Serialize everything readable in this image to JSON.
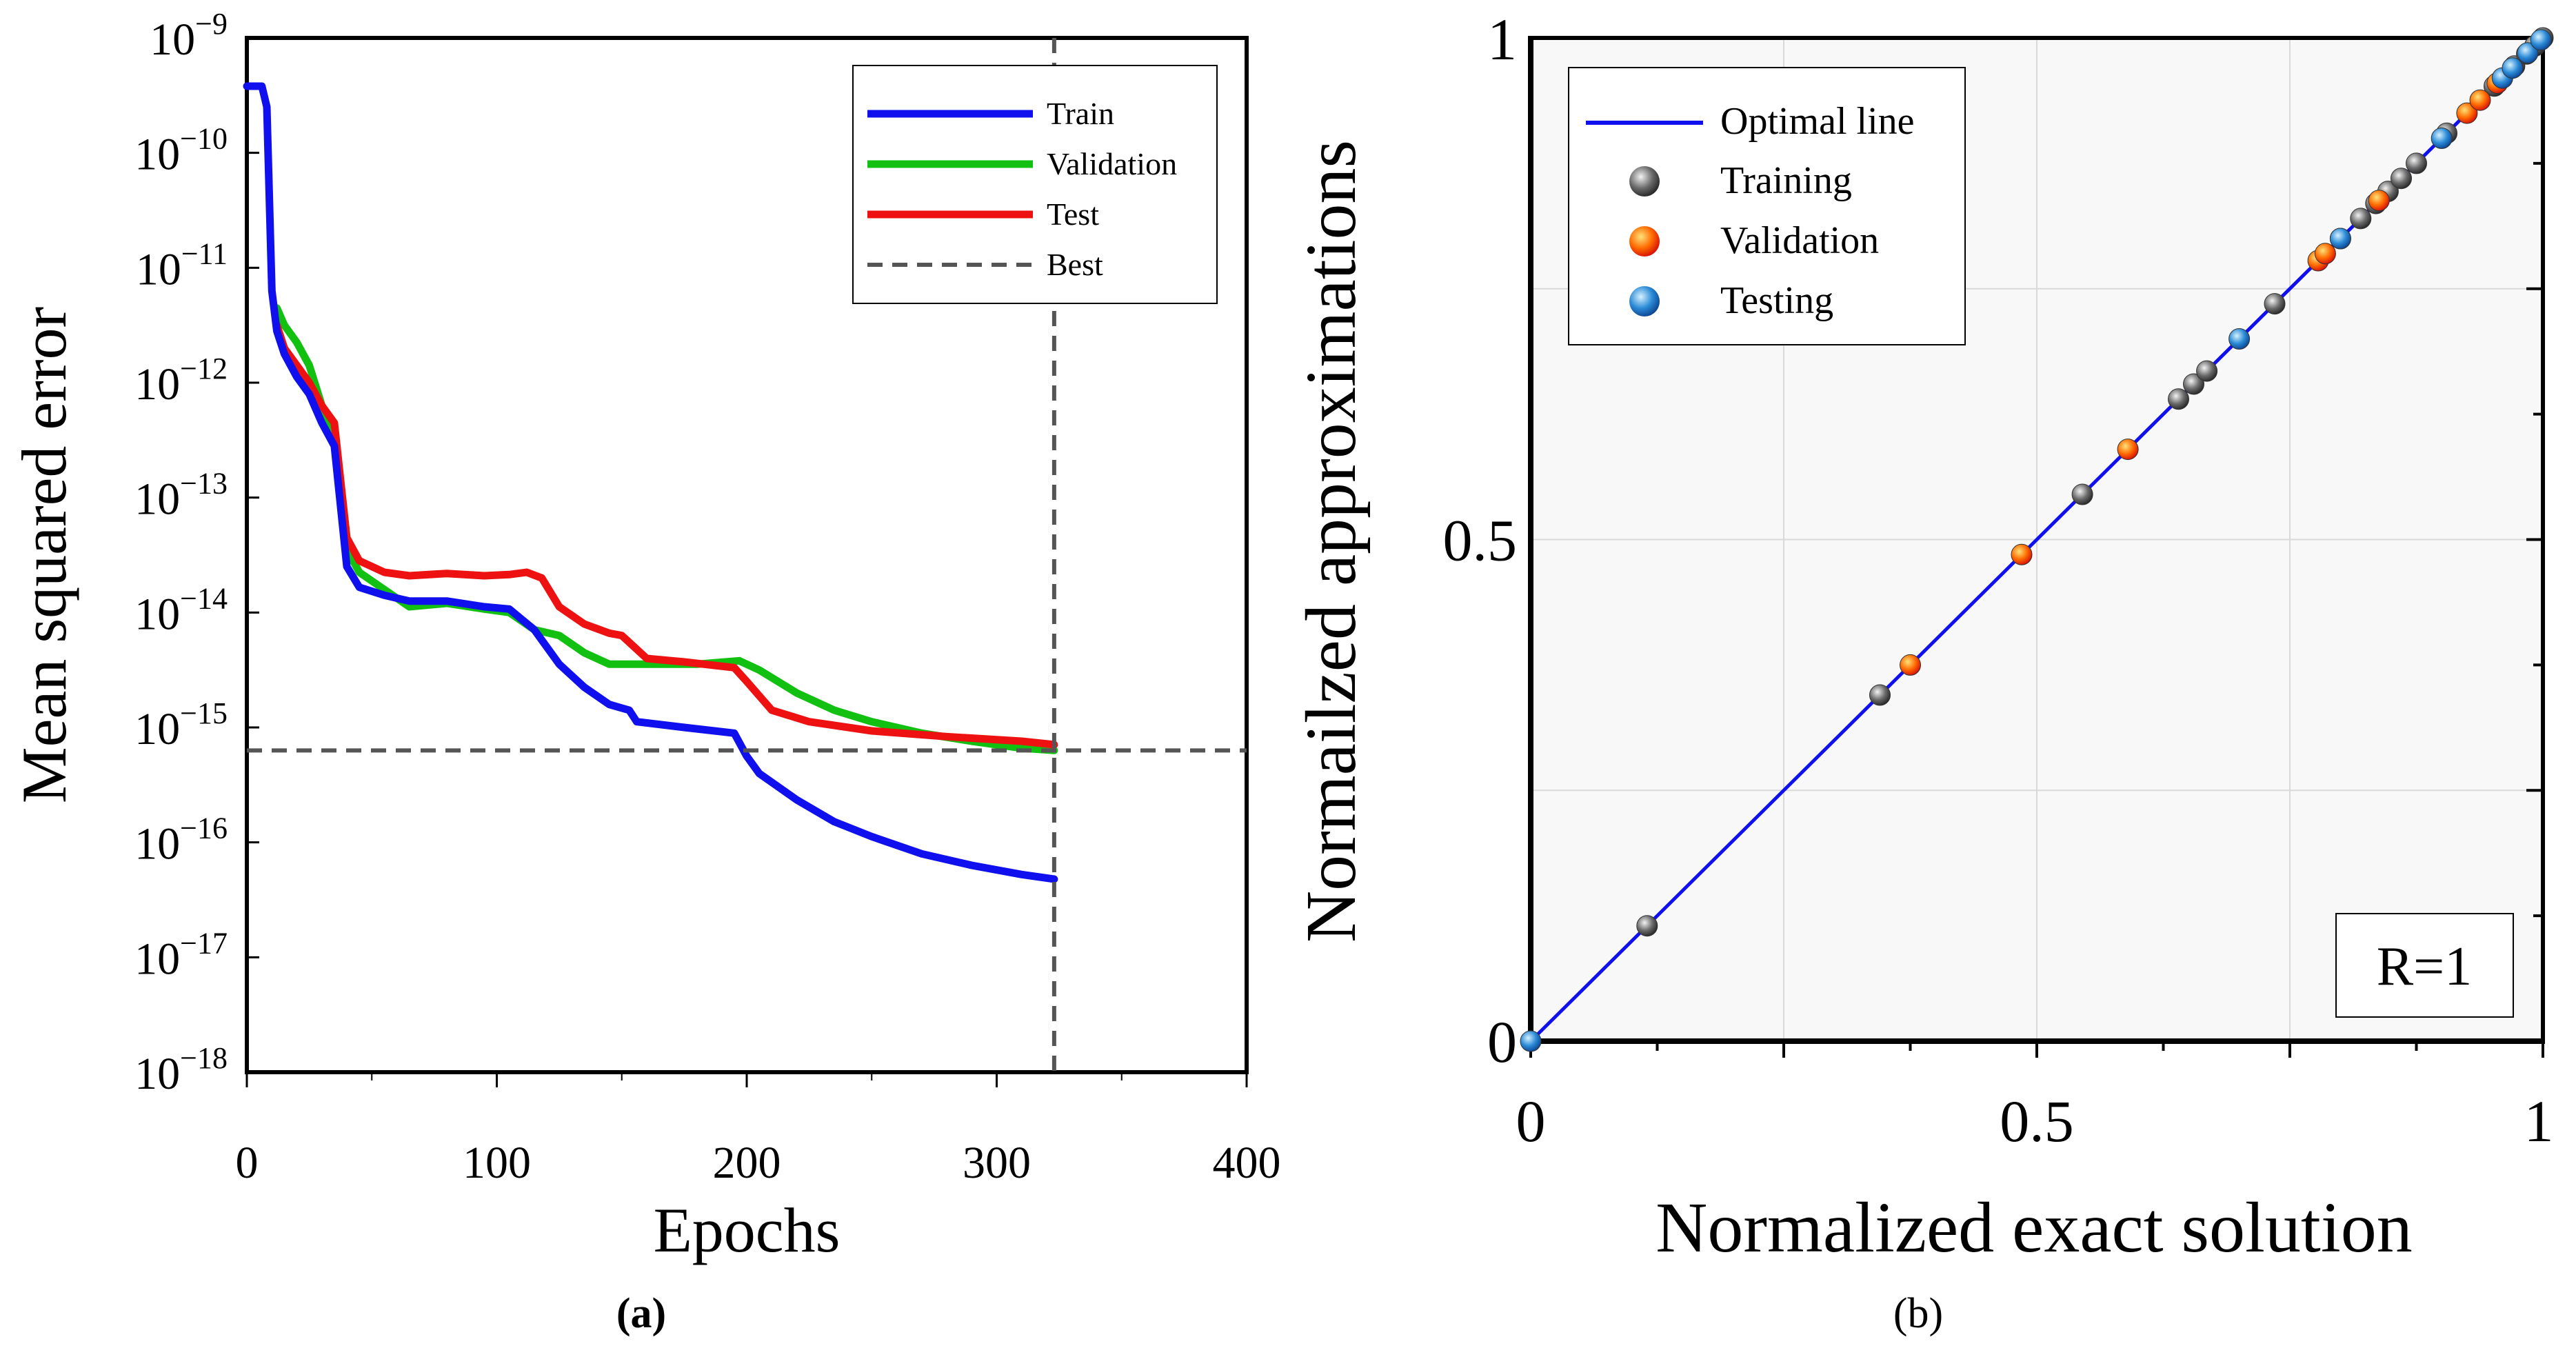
{
  "chart_data": [
    {
      "type": "line",
      "panel_label": "(a)",
      "xlabel": "Epochs",
      "ylabel": "Mean squared error",
      "xlim": [
        0,
        400
      ],
      "ylim_log10": [
        -18,
        -9
      ],
      "x_ticks": [
        0,
        100,
        200,
        300,
        400
      ],
      "y_ticks": [
        {
          "base": "10",
          "exp": "−9",
          "value": -9
        },
        {
          "base": "10",
          "exp": "−10",
          "value": -10
        },
        {
          "base": "10",
          "exp": "−11",
          "value": -11
        },
        {
          "base": "10",
          "exp": "−12",
          "value": -12
        },
        {
          "base": "10",
          "exp": "−13",
          "value": -13
        },
        {
          "base": "10",
          "exp": "−14",
          "value": -14
        },
        {
          "base": "10",
          "exp": "−15",
          "value": -15
        },
        {
          "base": "10",
          "exp": "−16",
          "value": -16
        },
        {
          "base": "10",
          "exp": "−17",
          "value": -17
        },
        {
          "base": "10",
          "exp": "−18",
          "value": -18
        }
      ],
      "y_scale": "log",
      "series": [
        {
          "name": "Train",
          "color": "#1010ee",
          "x": [
            0,
            3,
            6,
            8,
            10,
            12,
            15,
            20,
            25,
            30,
            35,
            40,
            45,
            55,
            65,
            80,
            95,
            105,
            115,
            125,
            135,
            145,
            153,
            156,
            175,
            195,
            200,
            205,
            220,
            235,
            250,
            270,
            290,
            310,
            323
          ],
          "log10_y": [
            -9.42,
            -9.42,
            -9.42,
            -9.6,
            -11.2,
            -11.55,
            -11.75,
            -11.95,
            -12.1,
            -12.35,
            -12.55,
            -13.6,
            -13.78,
            -13.85,
            -13.9,
            -13.9,
            -13.95,
            -13.97,
            -14.15,
            -14.45,
            -14.65,
            -14.8,
            -14.85,
            -14.95,
            -15.0,
            -15.05,
            -15.25,
            -15.4,
            -15.63,
            -15.82,
            -15.95,
            -16.1,
            -16.2,
            -16.28,
            -16.32
          ]
        },
        {
          "name": "Validation",
          "color": "#12c012",
          "x": [
            12,
            15,
            20,
            25,
            30,
            35,
            40,
            45,
            55,
            65,
            80,
            95,
            105,
            115,
            125,
            135,
            145,
            160,
            180,
            197,
            205,
            220,
            235,
            250,
            270,
            290,
            310,
            323
          ],
          "log10_y": [
            -11.35,
            -11.5,
            -11.65,
            -11.85,
            -12.2,
            -12.45,
            -13.45,
            -13.65,
            -13.8,
            -13.95,
            -13.92,
            -13.97,
            -14.0,
            -14.15,
            -14.2,
            -14.35,
            -14.45,
            -14.45,
            -14.45,
            -14.42,
            -14.5,
            -14.7,
            -14.85,
            -14.95,
            -15.05,
            -15.12,
            -15.18,
            -15.2
          ]
        },
        {
          "name": "Test",
          "color": "#ee1111",
          "x": [
            12,
            15,
            20,
            25,
            30,
            35,
            40,
            45,
            55,
            65,
            80,
            95,
            105,
            112,
            118,
            125,
            135,
            145,
            150,
            155,
            160,
            175,
            195,
            200,
            210,
            225,
            250,
            280,
            310,
            323
          ],
          "log10_y": [
            -11.5,
            -11.7,
            -11.85,
            -12.0,
            -12.2,
            -12.35,
            -13.35,
            -13.55,
            -13.65,
            -13.68,
            -13.66,
            -13.68,
            -13.67,
            -13.65,
            -13.7,
            -13.95,
            -14.1,
            -14.18,
            -14.2,
            -14.3,
            -14.4,
            -14.43,
            -14.48,
            -14.6,
            -14.85,
            -14.95,
            -15.03,
            -15.08,
            -15.12,
            -15.15
          ]
        }
      ],
      "best": {
        "name": "Best",
        "epoch": 323,
        "log10_value": -15.2,
        "color": "#555555"
      },
      "legend_position": "top-right"
    },
    {
      "type": "scatter",
      "panel_label": "(b)",
      "xlabel": "Normalized exact solution",
      "ylabel": "Normailzed approximations",
      "xlim": [
        0,
        1
      ],
      "ylim": [
        0,
        1
      ],
      "x_tick_labels": [
        "0",
        "0.5",
        "1"
      ],
      "y_tick_labels": [
        "0",
        "0.5",
        "1"
      ],
      "annotation": "R=1",
      "optimal_line": {
        "name": "Optimal line",
        "color": "#1010ee"
      },
      "series": [
        {
          "name": "Training",
          "color": "#555555",
          "points": [
            0.115,
            0.345,
            0.545,
            0.64,
            0.655,
            0.668,
            0.735,
            0.8,
            0.82,
            0.835,
            0.847,
            0.86,
            0.875,
            0.905,
            0.952,
            0.972,
            0.984,
            0.992,
            1.0
          ]
        },
        {
          "name": "Validation",
          "color": "#ff5500",
          "points": [
            0.375,
            0.485,
            0.59,
            0.778,
            0.785,
            0.838,
            0.925,
            0.938,
            0.955
          ]
        },
        {
          "name": "Testing",
          "color": "#2a8ad6",
          "points": [
            0.0,
            0.7,
            0.8,
            0.9,
            0.96,
            0.97,
            0.985,
            0.998
          ]
        }
      ],
      "legend_position": "top-left"
    }
  ]
}
